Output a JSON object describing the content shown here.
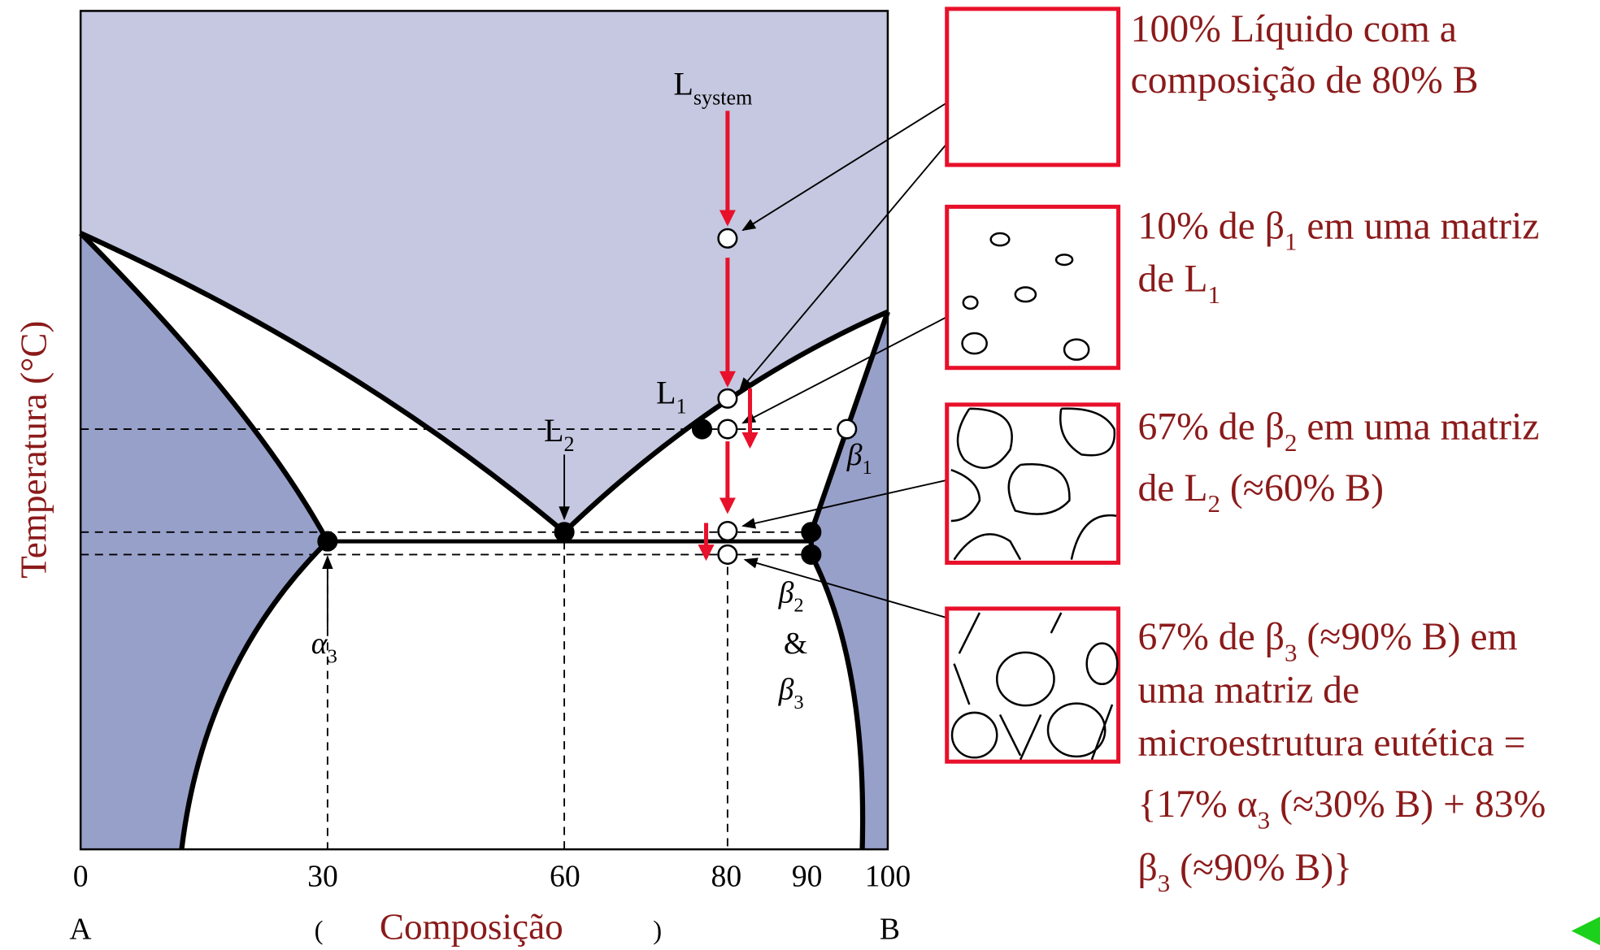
{
  "axes": {
    "y_label": "Temperatura (°C)",
    "x_label": "Composição",
    "x_ticks": [
      0,
      30,
      60,
      80,
      90,
      100
    ],
    "left_end": "A",
    "right_end": "B",
    "open_paren": "(",
    "close_paren": ")"
  },
  "diagram_labels": [
    [
      {
        "text": "L"
      },
      {
        "sub": "system"
      }
    ],
    [
      {
        "text": "L"
      },
      {
        "sub": "1"
      }
    ],
    [
      {
        "text": "L"
      },
      {
        "sub": "2"
      }
    ],
    [
      {
        "text": "β"
      },
      {
        "sub": "1"
      }
    ],
    [
      {
        "text": "β"
      },
      {
        "sub": "2"
      }
    ],
    [
      {
        "text": "&"
      }
    ],
    [
      {
        "text": "β"
      },
      {
        "sub": "3"
      }
    ],
    [
      {
        "text": "α"
      },
      {
        "sub": "3"
      }
    ]
  ],
  "panels": [
    {
      "lines": [
        [
          {
            "text": "100% Líquido com a"
          }
        ],
        [
          {
            "text": "composição de 80% B"
          }
        ]
      ]
    },
    {
      "lines": [
        [
          {
            "text": "10% de β"
          },
          {
            "sub": "1"
          },
          {
            "text": " em uma matriz"
          }
        ],
        [
          {
            "text": "de L"
          },
          {
            "sub": "1"
          }
        ]
      ]
    },
    {
      "lines": [
        [
          {
            "text": "67% de β"
          },
          {
            "sub": "2"
          },
          {
            "text": " em uma matriz"
          }
        ],
        [
          {
            "text": "de L"
          },
          {
            "sub": "2"
          },
          {
            "text": " (≈60% B)"
          }
        ]
      ]
    },
    {
      "lines": [
        [
          {
            "text": "67% de β"
          },
          {
            "sub": "3"
          },
          {
            "text": " (≈90% B)  em"
          }
        ],
        [
          {
            "text": "uma matriz de"
          }
        ],
        [
          {
            "text": "microestrutura eutética ="
          }
        ],
        [
          {
            "text": "{17% α"
          },
          {
            "sub": "3"
          },
          {
            "text": " (≈30% B) + 83%"
          }
        ],
        [
          {
            "text": "β"
          },
          {
            "sub": "3"
          },
          {
            "text": " (≈90% B)}"
          }
        ]
      ]
    }
  ]
}
